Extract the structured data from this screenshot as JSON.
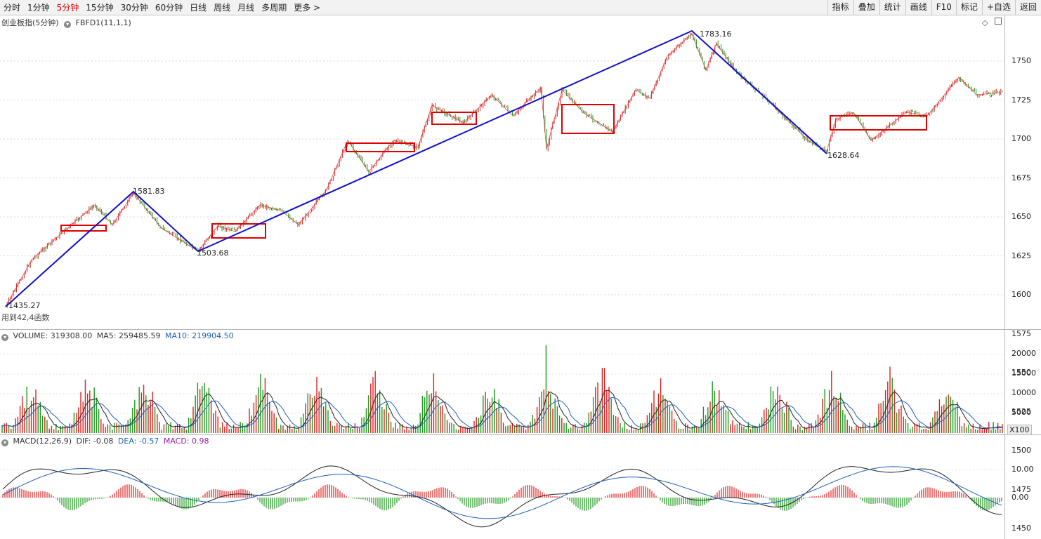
{
  "toolbar": {
    "tabs": [
      {
        "label": "分时",
        "active": false
      },
      {
        "label": "1分钟",
        "active": false
      },
      {
        "label": "5分钟",
        "active": true
      },
      {
        "label": "15分钟",
        "active": false
      },
      {
        "label": "30分钟",
        "active": false
      },
      {
        "label": "60分钟",
        "active": false
      },
      {
        "label": "日线",
        "active": false
      },
      {
        "label": "周线",
        "active": false
      },
      {
        "label": "月线",
        "active": false
      },
      {
        "label": "多周期",
        "active": false
      },
      {
        "label": "更多 >",
        "active": false
      }
    ],
    "tools": [
      "指标",
      "叠加",
      "统计",
      "画线",
      "F10",
      "标记",
      "+自选",
      "返回"
    ]
  },
  "main_chart": {
    "title": "创业板指(5分钟)",
    "indicator": "FBFD1(11,1,1)",
    "overlay_text": "用到42,4函数",
    "price_labels": {
      "low1": "1435.27",
      "high1": "1581.83",
      "low2": "1503.68",
      "high2": "1783.16",
      "low3": "1628.64"
    },
    "y_ticks": [
      "1750",
      "1725",
      "1700",
      "1675",
      "1650",
      "1625",
      "1600",
      "1575",
      "1550",
      "1525",
      "1500",
      "1475",
      "1450"
    ]
  },
  "volume_panel": {
    "label": "VOLUME: 319308.00",
    "ma5": "MA5: 259485.59",
    "ma10": "MA10: 219904.50",
    "y_ticks": [
      "20000",
      "15000",
      "10000",
      "5000"
    ],
    "unit": "X100"
  },
  "macd_panel": {
    "label": "MACD(12,26,9)",
    "dif": "DIF: -0.08",
    "dea": "DEA: -0.57",
    "macd": "MACD: 0.98",
    "y_ticks": [
      "10.00",
      "0.00"
    ]
  },
  "colors": {
    "up": "#e02020",
    "down": "#1e9a1e",
    "trend": "#1010cc",
    "box": "#e00000",
    "active_tab": "#d40000"
  }
}
